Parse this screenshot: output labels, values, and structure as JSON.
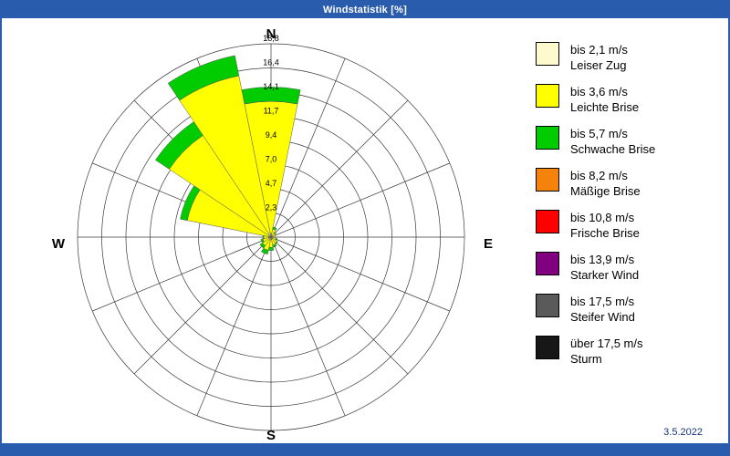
{
  "window": {
    "title": "Windstatistik [%]",
    "date": "3.5.2022"
  },
  "colors": {
    "frame": "#2A5CAD",
    "grid": "#3a3a3a",
    "tick_text": "#000000",
    "compass_text": "#000000",
    "segment_outline": "#555555"
  },
  "chart_data": {
    "type": "windrose",
    "title": "Windstatistik [%]",
    "units": "%",
    "compass": {
      "n": "N",
      "e": "E",
      "s": "S",
      "w": "W"
    },
    "rings": 8,
    "rmax": 18.8,
    "radial_ticks": [
      "2,3",
      "4,7",
      "7,0",
      "9,4",
      "11,7",
      "14,1",
      "16,4",
      "18,8"
    ],
    "directions": [
      "N",
      "NNE",
      "NE",
      "ENE",
      "E",
      "ESE",
      "SE",
      "SSE",
      "S",
      "SSW",
      "SW",
      "WSW",
      "W",
      "WNW",
      "NW",
      "NNW"
    ],
    "bins": [
      {
        "label": "bis 2,1 m/s",
        "name": "Leiser Zug",
        "color": "#FFFACD"
      },
      {
        "label": "bis 3,6 m/s",
        "name": "Leichte Brise",
        "color": "#FFFF00"
      },
      {
        "label": "bis 5,7 m/s",
        "name": "Schwache Brise",
        "color": "#00CC00"
      },
      {
        "label": "bis 8,2 m/s",
        "name": "Mäßige Brise",
        "color": "#F5820B"
      },
      {
        "label": "bis 10,8 m/s",
        "name": "Frische Brise",
        "color": "#FF0000"
      },
      {
        "label": "bis 13,9 m/s",
        "name": "Starker Wind",
        "color": "#800080"
      },
      {
        "label": "bis 17,5 m/s",
        "name": "Steifer Wind",
        "color": "#5A5A5A"
      },
      {
        "label": "über 17,5 m/s",
        "name": "Sturm",
        "color": "#171717"
      }
    ],
    "values": [
      [
        0.3,
        12.9,
        1.4,
        0,
        0,
        0,
        0,
        0
      ],
      [
        0.2,
        0.6,
        0.2,
        0,
        0,
        0,
        0,
        0
      ],
      [
        0.1,
        0.4,
        0.1,
        0,
        0,
        0,
        0,
        0
      ],
      [
        0.1,
        0.3,
        0,
        0,
        0,
        0,
        0,
        0
      ],
      [
        0.1,
        0.3,
        0,
        0,
        0,
        0,
        0,
        0
      ],
      [
        0.1,
        0.4,
        0.1,
        0,
        0,
        0,
        0,
        0
      ],
      [
        0.2,
        0.5,
        0.1,
        0,
        0,
        0,
        0,
        0
      ],
      [
        0.2,
        0.6,
        0.2,
        0,
        0,
        0,
        0,
        0
      ],
      [
        0.2,
        0.8,
        0.3,
        0,
        0,
        0,
        0,
        0
      ],
      [
        0.3,
        1.0,
        0.4,
        0,
        0,
        0,
        0,
        0
      ],
      [
        0.2,
        0.8,
        0.3,
        0,
        0,
        0,
        0,
        0
      ],
      [
        0.2,
        0.6,
        0.2,
        0,
        0,
        0,
        0,
        0
      ],
      [
        0.2,
        0.5,
        0.1,
        0,
        0,
        0,
        0,
        0
      ],
      [
        0.2,
        8.1,
        0.7,
        0,
        0,
        0,
        0,
        0
      ],
      [
        0.3,
        11.6,
        1.6,
        0,
        0,
        0,
        0,
        0
      ],
      [
        0.4,
        15.6,
        2.0,
        0,
        0,
        0,
        0,
        0
      ]
    ]
  }
}
